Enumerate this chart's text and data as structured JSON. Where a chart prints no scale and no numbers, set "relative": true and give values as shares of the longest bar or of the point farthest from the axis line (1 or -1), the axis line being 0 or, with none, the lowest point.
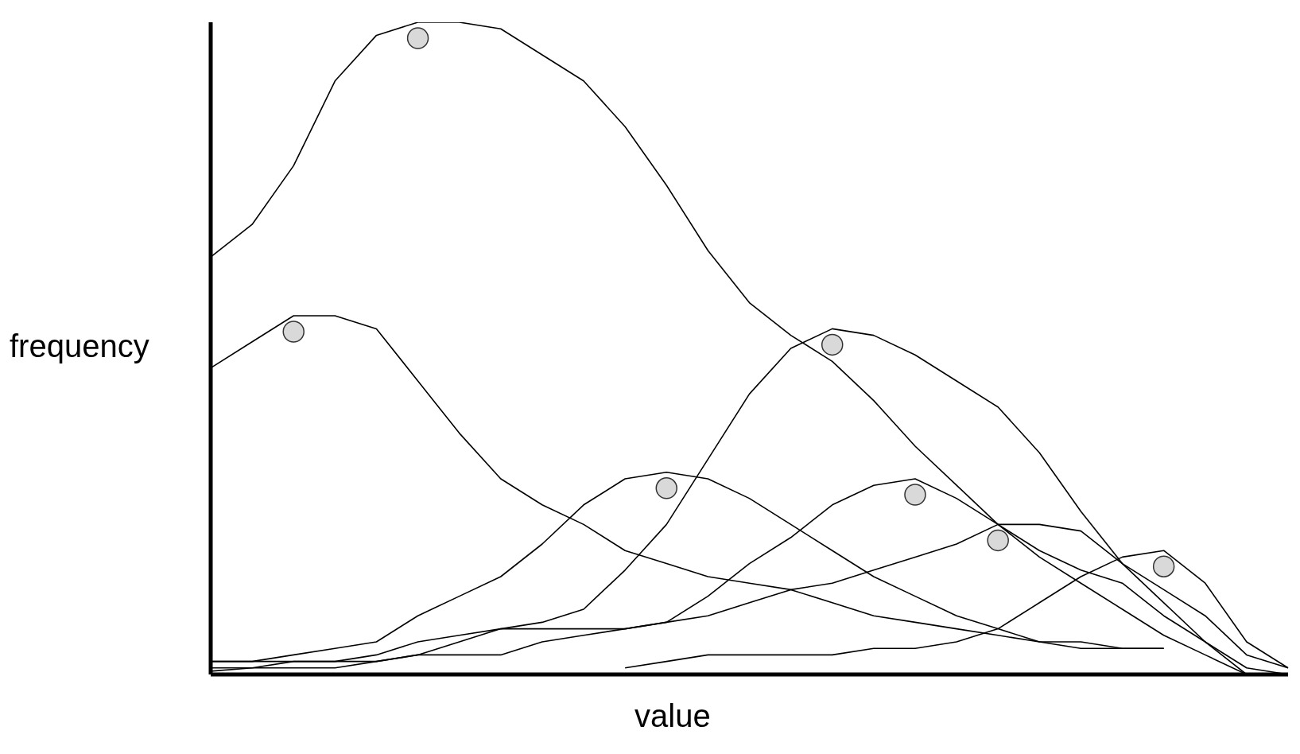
{
  "chart_data": {
    "type": "line",
    "xlabel": "value",
    "ylabel": "frequency",
    "relative": true,
    "categories": [
      null,
      null,
      null,
      null,
      null,
      null,
      null,
      null,
      null,
      null,
      null,
      null,
      null,
      null,
      null,
      null,
      null,
      null,
      null,
      null,
      null,
      null,
      null,
      null,
      null,
      null,
      null
    ],
    "series": [
      {
        "color": "#000000",
        "values": [
          0.64,
          0.69,
          0.78,
          0.91,
          0.98,
          1,
          1,
          0.99,
          0.95,
          0.91,
          0.84,
          0.75,
          0.65,
          0.57,
          0.52,
          0.48,
          0.42,
          0.35,
          0.29,
          0.23,
          0.19,
          0.16,
          0.14,
          0.09,
          0.05,
          0.01,
          0
        ]
      },
      {
        "color": "#000000",
        "values": [
          0.47,
          0.51,
          0.55,
          0.55,
          0.53,
          0.45,
          0.37,
          0.3,
          0.26,
          0.23,
          0.19,
          0.17,
          0.15,
          0.14,
          0.13,
          0.11,
          0.09,
          0.08,
          0.07,
          0.06,
          0.05,
          0.04,
          0.04,
          0.04,
          null,
          null,
          null
        ]
      },
      {
        "color": "#000000",
        "values": [
          0.02,
          0.02,
          0.03,
          0.04,
          0.05,
          0.09,
          0.12,
          0.15,
          0.2,
          0.26,
          0.3,
          0.31,
          0.3,
          0.27,
          0.23,
          0.19,
          0.15,
          0.12,
          0.09,
          0.07,
          0.05,
          0.05,
          0.04,
          0.04,
          null,
          null,
          null
        ]
      },
      {
        "color": "#000000",
        "values": [
          0.01,
          0.01,
          0.02,
          0.02,
          0.03,
          0.05,
          0.06,
          0.07,
          0.08,
          0.1,
          0.16,
          0.23,
          0.33,
          0.43,
          0.5,
          0.53,
          0.52,
          0.49,
          0.45,
          0.41,
          0.34,
          0.25,
          0.17,
          0.13,
          0.09,
          0.03,
          0.01
        ]
      },
      {
        "color": "#000000",
        "values": [
          0.005,
          0.01,
          0.01,
          0.01,
          0.02,
          0.03,
          0.05,
          0.07,
          0.07,
          0.07,
          0.07,
          0.08,
          0.12,
          0.17,
          0.21,
          0.26,
          0.29,
          0.3,
          0.27,
          0.23,
          0.18,
          0.14,
          0.1,
          0.06,
          0.03,
          0,
          null
        ]
      },
      {
        "color": "#000000",
        "values": [
          0.02,
          0.02,
          0.02,
          0.02,
          0.02,
          0.03,
          0.03,
          0.03,
          0.05,
          0.06,
          0.07,
          0.08,
          0.09,
          0.11,
          0.13,
          0.14,
          0.16,
          0.18,
          0.2,
          0.23,
          0.23,
          0.22,
          0.17,
          0.11,
          0.05,
          0,
          null
        ]
      },
      {
        "color": "#000000",
        "values": [
          null,
          null,
          null,
          null,
          null,
          null,
          null,
          null,
          null,
          null,
          0.01,
          0.02,
          0.03,
          0.03,
          0.03,
          0.03,
          0.04,
          0.04,
          0.05,
          0.07,
          0.11,
          0.15,
          0.18,
          0.19,
          0.14,
          0.05,
          0.01
        ]
      }
    ]
  }
}
